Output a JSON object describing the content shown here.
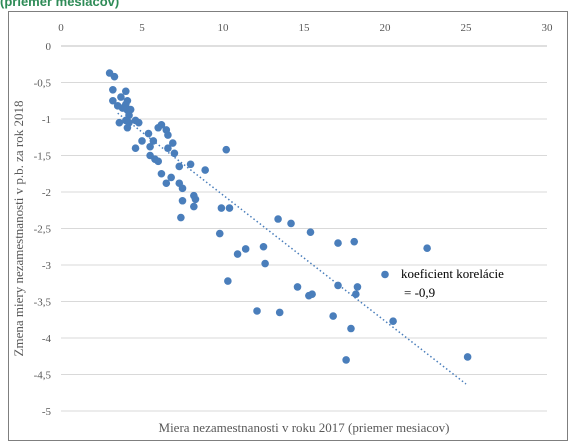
{
  "header": {
    "text": "(priemer mesiacov)"
  },
  "chart_data": {
    "type": "scatter",
    "xlabel": "Miera nezamestnanosti v roku 2017 (priemer mesiacov)",
    "ylabel": "Zmena miery nezamestnanosti v p.b. za rok 2018",
    "xlim": [
      0,
      30
    ],
    "ylim": [
      -5,
      0
    ],
    "xticks": [
      0,
      5,
      10,
      15,
      20,
      25,
      30
    ],
    "yticks": [
      0,
      -0.5,
      -1,
      -1.5,
      -2,
      -2.5,
      -3,
      -3.5,
      -4,
      -4.5,
      -5
    ],
    "x_axis_position": "top",
    "grid": {
      "horizontal": true,
      "vertical": false
    },
    "marker_color": "#4a7ebb",
    "trendline": {
      "style": "dotted",
      "color": "#4a7ebb",
      "from": [
        3.5,
        -0.92
      ],
      "to": [
        25.0,
        -4.63
      ]
    },
    "annotation": {
      "line1": "koeficient korelácie",
      "line2": "= -0,9"
    },
    "points": [
      [
        3.0,
        -0.37
      ],
      [
        3.3,
        -0.42
      ],
      [
        3.2,
        -0.6
      ],
      [
        3.2,
        -0.75
      ],
      [
        3.5,
        -0.82
      ],
      [
        3.7,
        -0.7
      ],
      [
        4.0,
        -0.62
      ],
      [
        4.1,
        -0.75
      ],
      [
        4.0,
        -0.8
      ],
      [
        3.8,
        -0.85
      ],
      [
        4.1,
        -0.88
      ],
      [
        4.2,
        -0.95
      ],
      [
        4.3,
        -0.87
      ],
      [
        4.0,
        -1.02
      ],
      [
        4.2,
        -1.05
      ],
      [
        3.6,
        -1.05
      ],
      [
        4.1,
        -1.12
      ],
      [
        4.6,
        -1.02
      ],
      [
        4.8,
        -1.05
      ],
      [
        4.6,
        -1.4
      ],
      [
        5.0,
        -1.3
      ],
      [
        5.4,
        -1.2
      ],
      [
        5.5,
        -1.38
      ],
      [
        5.7,
        -1.3
      ],
      [
        6.0,
        -1.12
      ],
      [
        6.2,
        -1.08
      ],
      [
        6.5,
        -1.15
      ],
      [
        6.6,
        -1.22
      ],
      [
        5.5,
        -1.5
      ],
      [
        5.8,
        -1.55
      ],
      [
        6.0,
        -1.58
      ],
      [
        6.6,
        -1.4
      ],
      [
        6.9,
        -1.33
      ],
      [
        7.0,
        -1.47
      ],
      [
        6.2,
        -1.75
      ],
      [
        6.5,
        -1.88
      ],
      [
        6.8,
        -1.8
      ],
      [
        7.3,
        -1.88
      ],
      [
        7.5,
        -1.95
      ],
      [
        7.3,
        -1.65
      ],
      [
        8.0,
        -1.62
      ],
      [
        7.5,
        -2.12
      ],
      [
        7.4,
        -2.35
      ],
      [
        8.2,
        -2.05
      ],
      [
        8.3,
        -2.1
      ],
      [
        8.2,
        -2.2
      ],
      [
        8.9,
        -1.7
      ],
      [
        10.2,
        -1.42
      ],
      [
        9.9,
        -2.22
      ],
      [
        10.4,
        -2.22
      ],
      [
        9.8,
        -2.57
      ],
      [
        10.9,
        -2.85
      ],
      [
        11.4,
        -2.78
      ],
      [
        12.5,
        -2.75
      ],
      [
        12.6,
        -2.98
      ],
      [
        13.4,
        -2.37
      ],
      [
        14.2,
        -2.43
      ],
      [
        15.4,
        -2.55
      ],
      [
        10.3,
        -3.22
      ],
      [
        12.1,
        -3.63
      ],
      [
        13.5,
        -3.65
      ],
      [
        14.6,
        -3.3
      ],
      [
        15.3,
        -3.42
      ],
      [
        15.5,
        -3.4
      ],
      [
        16.8,
        -3.7
      ],
      [
        17.1,
        -3.28
      ],
      [
        17.1,
        -2.7
      ],
      [
        18.1,
        -2.68
      ],
      [
        17.9,
        -3.87
      ],
      [
        17.6,
        -4.3
      ],
      [
        18.2,
        -3.4
      ],
      [
        18.3,
        -3.3
      ],
      [
        20.0,
        -3.13
      ],
      [
        20.5,
        -3.77
      ],
      [
        22.6,
        -2.77
      ],
      [
        25.1,
        -4.26
      ]
    ]
  }
}
